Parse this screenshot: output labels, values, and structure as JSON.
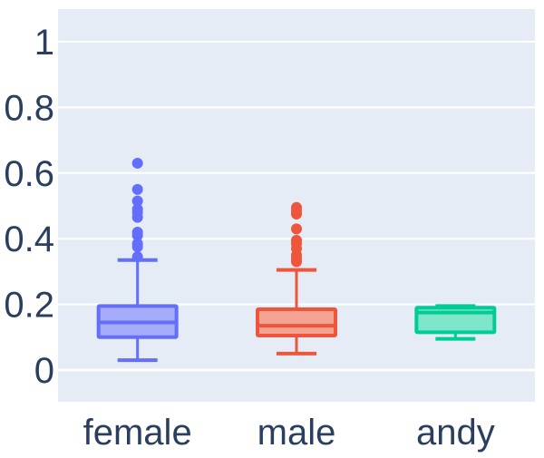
{
  "chart_data": {
    "type": "box",
    "title": "",
    "xlabel": "",
    "ylabel": "",
    "ylim": [
      -0.1,
      1.1
    ],
    "yticks": [
      0,
      0.2,
      0.4,
      0.6,
      0.8,
      1
    ],
    "ytick_labels": [
      "0",
      "0.2",
      "0.4",
      "0.6",
      "0.8",
      "1"
    ],
    "grid": true,
    "categories": [
      "female",
      "male",
      "andy"
    ],
    "series": [
      {
        "category": "female",
        "color": "#636efa",
        "fill": "#a6abfc",
        "whisker_low": 0.03,
        "q1": 0.1,
        "median": 0.145,
        "q3": 0.195,
        "whisker_high": 0.335,
        "outliers": [
          0.345,
          0.375,
          0.385,
          0.41,
          0.42,
          0.465,
          0.48,
          0.49,
          0.515,
          0.55,
          0.63
        ]
      },
      {
        "category": "male",
        "color": "#ef553b",
        "fill": "#f4a393",
        "whisker_low": 0.05,
        "q1": 0.105,
        "median": 0.135,
        "q3": 0.185,
        "whisker_high": 0.305,
        "outliers": [
          0.33,
          0.34,
          0.35,
          0.37,
          0.385,
          0.395,
          0.43,
          0.475,
          0.485,
          0.495
        ]
      },
      {
        "category": "andy",
        "color": "#00cc96",
        "fill": "#7fe5ca",
        "whisker_low": 0.095,
        "q1": 0.115,
        "median": 0.175,
        "q3": 0.19,
        "whisker_high": 0.195,
        "outliers": []
      }
    ],
    "colors": {
      "plot_background": "#e5ecf6",
      "gridline": "#ffffff",
      "tick_text": "#2a3f5f"
    }
  }
}
